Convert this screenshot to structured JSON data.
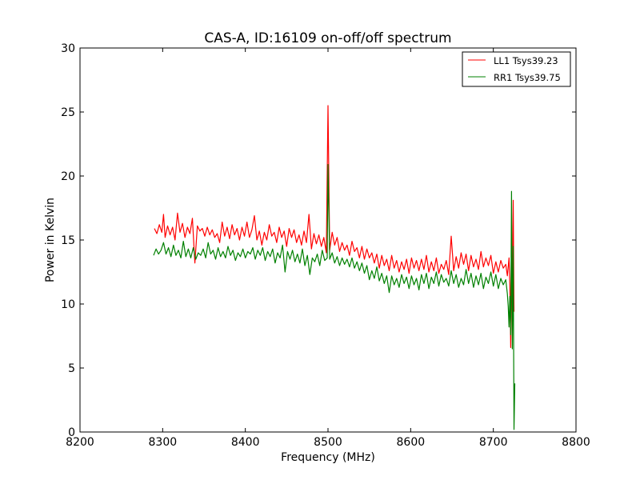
{
  "chart_data": {
    "type": "line",
    "title": "CAS-A, ID:16109 on-off/off spectrum",
    "xlabel": "Frequency (MHz)",
    "ylabel": "Power in Kelvin",
    "xlim": [
      8200,
      8800
    ],
    "ylim": [
      0,
      30
    ],
    "xticks": [
      8200,
      8300,
      8400,
      8500,
      8600,
      8700,
      8800
    ],
    "yticks": [
      0,
      5,
      10,
      15,
      20,
      25,
      30
    ],
    "grid": false,
    "legend_position": "top-right",
    "series": [
      {
        "name": "LL1 Tsys39.23",
        "color": "#ff0000",
        "points": [
          [
            8290,
            15.9
          ],
          [
            8293,
            15.5
          ],
          [
            8296,
            16.2
          ],
          [
            8299,
            15.6
          ],
          [
            8301,
            17.0
          ],
          [
            8303,
            15.2
          ],
          [
            8306,
            16.1
          ],
          [
            8309,
            15.4
          ],
          [
            8312,
            16.0
          ],
          [
            8315,
            15.0
          ],
          [
            8318,
            17.1
          ],
          [
            8321,
            15.6
          ],
          [
            8324,
            16.3
          ],
          [
            8327,
            15.2
          ],
          [
            8330,
            16.0
          ],
          [
            8333,
            15.5
          ],
          [
            8336,
            16.7
          ],
          [
            8339,
            13.2
          ],
          [
            8342,
            16.1
          ],
          [
            8345,
            15.7
          ],
          [
            8348,
            15.9
          ],
          [
            8351,
            15.3
          ],
          [
            8354,
            16.0
          ],
          [
            8357,
            15.4
          ],
          [
            8360,
            15.8
          ],
          [
            8363,
            15.2
          ],
          [
            8366,
            15.5
          ],
          [
            8369,
            14.8
          ],
          [
            8372,
            16.4
          ],
          [
            8375,
            15.3
          ],
          [
            8378,
            16.0
          ],
          [
            8381,
            15.1
          ],
          [
            8384,
            16.2
          ],
          [
            8387,
            15.4
          ],
          [
            8390,
            15.9
          ],
          [
            8393,
            15.0
          ],
          [
            8396,
            16.0
          ],
          [
            8399,
            15.3
          ],
          [
            8402,
            16.4
          ],
          [
            8405,
            15.2
          ],
          [
            8408,
            15.8
          ],
          [
            8411,
            16.9
          ],
          [
            8414,
            15.0
          ],
          [
            8417,
            15.7
          ],
          [
            8420,
            14.6
          ],
          [
            8423,
            15.6
          ],
          [
            8426,
            15.0
          ],
          [
            8429,
            16.2
          ],
          [
            8432,
            15.3
          ],
          [
            8435,
            15.6
          ],
          [
            8438,
            14.8
          ],
          [
            8441,
            16.0
          ],
          [
            8444,
            15.2
          ],
          [
            8447,
            15.7
          ],
          [
            8450,
            14.5
          ],
          [
            8453,
            15.9
          ],
          [
            8456,
            15.2
          ],
          [
            8459,
            15.8
          ],
          [
            8462,
            14.8
          ],
          [
            8465,
            15.4
          ],
          [
            8468,
            14.6
          ],
          [
            8471,
            15.7
          ],
          [
            8474,
            14.8
          ],
          [
            8477,
            17.0
          ],
          [
            8480,
            14.3
          ],
          [
            8483,
            15.5
          ],
          [
            8486,
            14.7
          ],
          [
            8489,
            15.4
          ],
          [
            8492,
            14.5
          ],
          [
            8495,
            15.2
          ],
          [
            8498,
            14.0
          ],
          [
            8500,
            25.5
          ],
          [
            8502,
            14.2
          ],
          [
            8505,
            15.6
          ],
          [
            8508,
            14.6
          ],
          [
            8511,
            15.2
          ],
          [
            8514,
            14.1
          ],
          [
            8517,
            14.8
          ],
          [
            8520,
            14.2
          ],
          [
            8523,
            14.6
          ],
          [
            8526,
            13.8
          ],
          [
            8529,
            14.9
          ],
          [
            8532,
            14.1
          ],
          [
            8535,
            14.4
          ],
          [
            8538,
            13.6
          ],
          [
            8541,
            14.5
          ],
          [
            8544,
            13.5
          ],
          [
            8547,
            14.3
          ],
          [
            8550,
            13.6
          ],
          [
            8553,
            14.0
          ],
          [
            8556,
            13.2
          ],
          [
            8559,
            13.9
          ],
          [
            8562,
            12.8
          ],
          [
            8565,
            13.8
          ],
          [
            8568,
            13.0
          ],
          [
            8571,
            13.5
          ],
          [
            8574,
            12.6
          ],
          [
            8577,
            13.8
          ],
          [
            8580,
            12.8
          ],
          [
            8583,
            13.4
          ],
          [
            8586,
            12.5
          ],
          [
            8589,
            13.3
          ],
          [
            8592,
            12.7
          ],
          [
            8595,
            13.5
          ],
          [
            8598,
            12.4
          ],
          [
            8601,
            13.6
          ],
          [
            8604,
            12.8
          ],
          [
            8607,
            13.4
          ],
          [
            8610,
            12.6
          ],
          [
            8613,
            13.5
          ],
          [
            8616,
            12.7
          ],
          [
            8619,
            13.8
          ],
          [
            8622,
            12.5
          ],
          [
            8625,
            13.3
          ],
          [
            8628,
            12.6
          ],
          [
            8631,
            13.6
          ],
          [
            8634,
            12.4
          ],
          [
            8637,
            13.1
          ],
          [
            8640,
            12.7
          ],
          [
            8643,
            13.4
          ],
          [
            8646,
            12.3
          ],
          [
            8649,
            15.3
          ],
          [
            8652,
            12.6
          ],
          [
            8655,
            13.7
          ],
          [
            8658,
            12.8
          ],
          [
            8661,
            14.0
          ],
          [
            8664,
            13.1
          ],
          [
            8667,
            13.9
          ],
          [
            8670,
            12.6
          ],
          [
            8673,
            13.8
          ],
          [
            8676,
            12.9
          ],
          [
            8679,
            13.5
          ],
          [
            8682,
            12.7
          ],
          [
            8685,
            14.1
          ],
          [
            8688,
            12.9
          ],
          [
            8691,
            13.6
          ],
          [
            8694,
            13.0
          ],
          [
            8697,
            13.8
          ],
          [
            8700,
            12.4
          ],
          [
            8703,
            13.3
          ],
          [
            8706,
            12.5
          ],
          [
            8709,
            13.4
          ],
          [
            8712,
            12.8
          ],
          [
            8715,
            13.1
          ],
          [
            8717,
            12.2
          ],
          [
            8719,
            13.6
          ],
          [
            8720,
            11.5
          ],
          [
            8721,
            6.6
          ],
          [
            8722,
            12.8
          ],
          [
            8723,
            11.0
          ],
          [
            8724,
            18.1
          ],
          [
            8725,
            9.4
          ]
        ]
      },
      {
        "name": "RR1 Tsys39.75",
        "color": "#008000",
        "points": [
          [
            8289,
            13.8
          ],
          [
            8292,
            14.3
          ],
          [
            8295,
            13.9
          ],
          [
            8298,
            14.2
          ],
          [
            8301,
            14.8
          ],
          [
            8304,
            13.9
          ],
          [
            8307,
            14.4
          ],
          [
            8310,
            13.7
          ],
          [
            8313,
            14.6
          ],
          [
            8316,
            13.8
          ],
          [
            8319,
            14.2
          ],
          [
            8322,
            13.6
          ],
          [
            8325,
            14.9
          ],
          [
            8328,
            13.7
          ],
          [
            8331,
            14.3
          ],
          [
            8334,
            13.6
          ],
          [
            8337,
            14.4
          ],
          [
            8340,
            13.5
          ],
          [
            8343,
            14.0
          ],
          [
            8346,
            13.8
          ],
          [
            8349,
            14.3
          ],
          [
            8352,
            13.6
          ],
          [
            8355,
            14.8
          ],
          [
            8358,
            13.9
          ],
          [
            8361,
            14.2
          ],
          [
            8364,
            13.5
          ],
          [
            8367,
            14.4
          ],
          [
            8370,
            13.7
          ],
          [
            8373,
            14.1
          ],
          [
            8376,
            13.6
          ],
          [
            8379,
            14.5
          ],
          [
            8382,
            13.8
          ],
          [
            8385,
            14.2
          ],
          [
            8388,
            13.4
          ],
          [
            8391,
            14.0
          ],
          [
            8394,
            13.7
          ],
          [
            8397,
            14.3
          ],
          [
            8400,
            13.6
          ],
          [
            8403,
            14.1
          ],
          [
            8406,
            13.9
          ],
          [
            8409,
            14.4
          ],
          [
            8412,
            13.5
          ],
          [
            8415,
            14.2
          ],
          [
            8418,
            13.8
          ],
          [
            8421,
            14.4
          ],
          [
            8424,
            13.4
          ],
          [
            8427,
            14.1
          ],
          [
            8430,
            13.7
          ],
          [
            8433,
            14.3
          ],
          [
            8436,
            13.2
          ],
          [
            8439,
            14.0
          ],
          [
            8442,
            13.6
          ],
          [
            8445,
            14.6
          ],
          [
            8448,
            12.5
          ],
          [
            8451,
            14.1
          ],
          [
            8454,
            13.5
          ],
          [
            8457,
            14.2
          ],
          [
            8460,
            13.3
          ],
          [
            8463,
            13.9
          ],
          [
            8466,
            13.2
          ],
          [
            8469,
            14.3
          ],
          [
            8472,
            13.0
          ],
          [
            8475,
            13.8
          ],
          [
            8478,
            12.3
          ],
          [
            8481,
            13.6
          ],
          [
            8484,
            13.3
          ],
          [
            8487,
            13.9
          ],
          [
            8490,
            13.0
          ],
          [
            8493,
            14.2
          ],
          [
            8496,
            13.4
          ],
          [
            8499,
            13.6
          ],
          [
            8500,
            20.9
          ],
          [
            8502,
            13.5
          ],
          [
            8505,
            14.0
          ],
          [
            8508,
            13.2
          ],
          [
            8511,
            13.7
          ],
          [
            8514,
            13.0
          ],
          [
            8517,
            13.6
          ],
          [
            8520,
            13.1
          ],
          [
            8523,
            13.5
          ],
          [
            8526,
            12.9
          ],
          [
            8529,
            13.6
          ],
          [
            8532,
            12.8
          ],
          [
            8535,
            13.3
          ],
          [
            8538,
            12.6
          ],
          [
            8541,
            13.2
          ],
          [
            8544,
            12.4
          ],
          [
            8547,
            13.0
          ],
          [
            8550,
            11.9
          ],
          [
            8553,
            12.6
          ],
          [
            8556,
            12.0
          ],
          [
            8559,
            12.9
          ],
          [
            8562,
            11.8
          ],
          [
            8565,
            12.4
          ],
          [
            8568,
            11.6
          ],
          [
            8571,
            12.2
          ],
          [
            8574,
            10.9
          ],
          [
            8577,
            12.2
          ],
          [
            8580,
            11.5
          ],
          [
            8583,
            12.0
          ],
          [
            8586,
            11.3
          ],
          [
            8589,
            12.3
          ],
          [
            8592,
            11.6
          ],
          [
            8595,
            12.1
          ],
          [
            8598,
            11.2
          ],
          [
            8601,
            12.2
          ],
          [
            8604,
            11.5
          ],
          [
            8607,
            12.0
          ],
          [
            8610,
            11.1
          ],
          [
            8613,
            12.3
          ],
          [
            8616,
            11.6
          ],
          [
            8619,
            12.4
          ],
          [
            8622,
            11.2
          ],
          [
            8625,
            12.1
          ],
          [
            8628,
            11.6
          ],
          [
            8631,
            12.5
          ],
          [
            8634,
            11.4
          ],
          [
            8637,
            12.3
          ],
          [
            8640,
            11.7
          ],
          [
            8643,
            12.0
          ],
          [
            8646,
            11.4
          ],
          [
            8649,
            12.6
          ],
          [
            8652,
            11.6
          ],
          [
            8655,
            12.3
          ],
          [
            8658,
            11.3
          ],
          [
            8661,
            12.0
          ],
          [
            8664,
            11.5
          ],
          [
            8667,
            12.7
          ],
          [
            8670,
            11.6
          ],
          [
            8673,
            12.4
          ],
          [
            8676,
            11.3
          ],
          [
            8679,
            12.2
          ],
          [
            8682,
            11.5
          ],
          [
            8685,
            12.4
          ],
          [
            8688,
            11.2
          ],
          [
            8691,
            12.1
          ],
          [
            8694,
            11.6
          ],
          [
            8697,
            12.5
          ],
          [
            8700,
            11.4
          ],
          [
            8703,
            12.3
          ],
          [
            8706,
            11.2
          ],
          [
            8709,
            12.0
          ],
          [
            8712,
            11.5
          ],
          [
            8715,
            11.9
          ],
          [
            8717,
            10.8
          ],
          [
            8718,
            9.8
          ],
          [
            8719,
            8.2
          ],
          [
            8720,
            10.6
          ],
          [
            8721,
            7.6
          ],
          [
            8722,
            18.8
          ],
          [
            8723,
            6.5
          ],
          [
            8724,
            14.5
          ],
          [
            8725,
            0.2
          ],
          [
            8726,
            3.8
          ]
        ]
      }
    ]
  }
}
